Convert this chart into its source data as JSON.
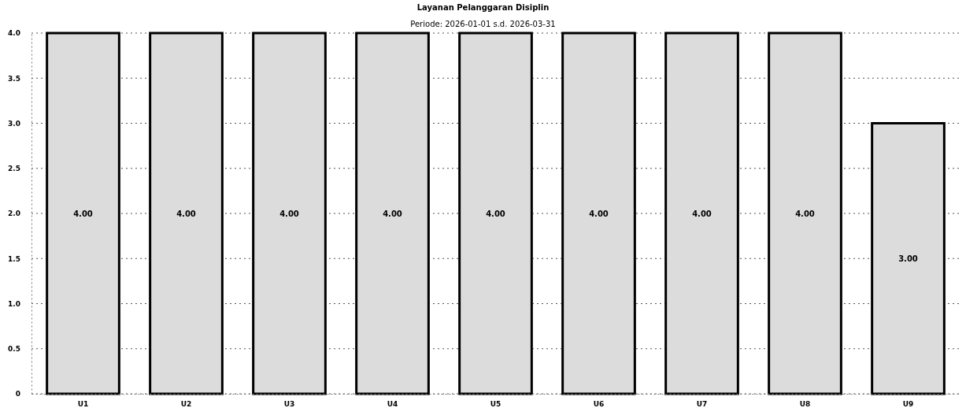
{
  "chart_data": {
    "type": "bar",
    "title": "Layanan Pelanggaran Disiplin",
    "subtitle": "Periode: 2026-01-01 s.d. 2026-03-31",
    "categories": [
      "U1",
      "U2",
      "U3",
      "U4",
      "U5",
      "U6",
      "U7",
      "U8",
      "U9"
    ],
    "values": [
      4,
      4,
      4,
      4,
      4,
      4,
      4,
      4,
      3
    ],
    "value_labels": [
      "4.00",
      "4.00",
      "4.00",
      "4.00",
      "4.00",
      "4.00",
      "4.00",
      "4.00",
      "3.00"
    ],
    "color": "#dcdcdc",
    "ylim": [
      0,
      4
    ],
    "yticks": [
      0,
      {
        "value": 0.5,
        "label": "0.5"
      },
      {
        "value": 1,
        "label": "1.0"
      },
      {
        "value": 1.5,
        "label": "1.5"
      },
      {
        "value": 2,
        "label": "2.0"
      },
      {
        "value": 2.5,
        "label": "2.5"
      },
      {
        "value": 3,
        "label": "3.0"
      },
      {
        "value": 3.5,
        "label": "3.5"
      },
      {
        "value": 4,
        "label": "4.0"
      }
    ],
    "grid": "y"
  }
}
